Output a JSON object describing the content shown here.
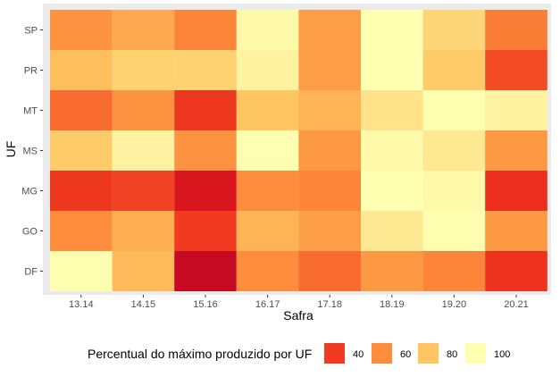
{
  "chart_data": {
    "type": "heatmap",
    "xlabel": "Safra",
    "ylabel": "UF",
    "x_categories": [
      "13.14",
      "14.15",
      "15.16",
      "16.17",
      "17.18",
      "18.19",
      "19.20",
      "20.21"
    ],
    "y_categories": [
      "SP",
      "PR",
      "MT",
      "MS",
      "MG",
      "GO",
      "DF"
    ],
    "values": [
      [
        62,
        70,
        58,
        98,
        66,
        100,
        86,
        56
      ],
      [
        78,
        84,
        84,
        96,
        66,
        100,
        82,
        44
      ],
      [
        52,
        62,
        38,
        80,
        74,
        90,
        100,
        96
      ],
      [
        82,
        96,
        62,
        100,
        64,
        98,
        92,
        64
      ],
      [
        38,
        42,
        20,
        60,
        58,
        100,
        98,
        34
      ],
      [
        60,
        72,
        40,
        74,
        66,
        92,
        100,
        64
      ],
      [
        100,
        76,
        10,
        60,
        52,
        64,
        58,
        36
      ]
    ],
    "color_scale": {
      "domain": [
        0,
        25,
        40,
        60,
        80,
        100
      ],
      "colors": [
        "#b10026",
        "#e31a1c",
        "#f03b20",
        "#fd8d3c",
        "#fec561",
        "#ffffb2"
      ]
    },
    "legend": {
      "title": "Percentual do máximo produzido por UF",
      "position": "bottom",
      "entries": [
        {
          "label": "40",
          "value": 40
        },
        {
          "label": "60",
          "value": 60
        },
        {
          "label": "80",
          "value": 80
        },
        {
          "label": "100",
          "value": 100
        }
      ]
    },
    "panel_background": "#ebebeb",
    "grid": false
  }
}
